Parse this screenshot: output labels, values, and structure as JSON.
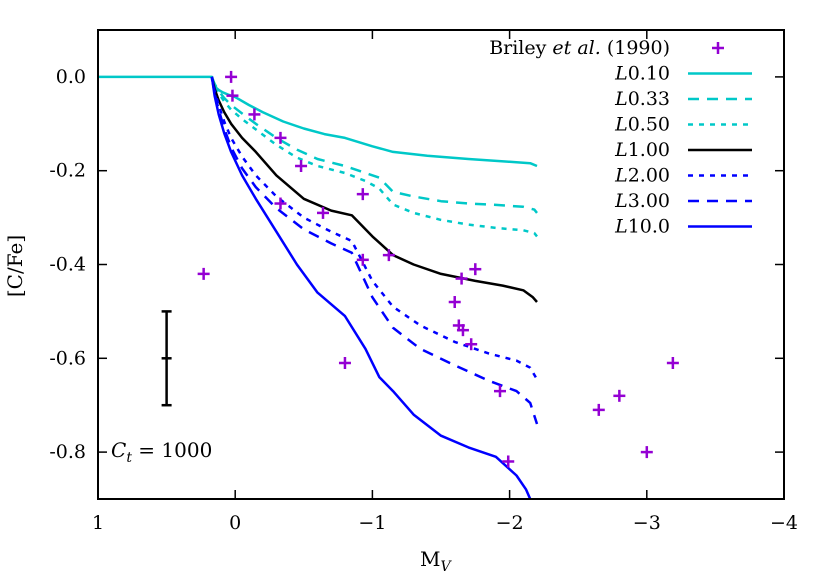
{
  "chart_data": {
    "type": "line",
    "xlabel_main": "M",
    "xlabel_sub": "V",
    "ylabel": "[C/Fe]",
    "xlim": [
      1,
      -4
    ],
    "ylim": [
      -0.9,
      0.1
    ],
    "x_ticks": [
      1,
      0,
      -1,
      -2,
      -3,
      -4
    ],
    "x_tick_labels": [
      "1",
      "0",
      "−1",
      "−2",
      "−3",
      "−4"
    ],
    "y_ticks": [
      0.0,
      -0.2,
      -0.4,
      -0.6,
      -0.8
    ],
    "y_tick_labels": [
      "0.0",
      "-0.2",
      "-0.4",
      "-0.6",
      "-0.8"
    ],
    "grid": false,
    "legend_position": "top-right",
    "annotation": {
      "lhs": "C",
      "sub": "t",
      "rhs": " = 1000"
    },
    "error_bar": {
      "x": 0.5,
      "y": -0.6,
      "low": -0.7,
      "high": -0.5
    },
    "observations": {
      "name_prefix": "Briley ",
      "name_italic": "et al.",
      "name_suffix": " (1990)",
      "color": "#9400d3",
      "points": [
        [
          0.03,
          0.0
        ],
        [
          0.02,
          -0.04
        ],
        [
          -0.14,
          -0.08
        ],
        [
          -0.33,
          -0.13
        ],
        [
          -0.48,
          -0.19
        ],
        [
          -0.33,
          -0.27
        ],
        [
          0.23,
          -0.42
        ],
        [
          -0.64,
          -0.29
        ],
        [
          -0.93,
          -0.25
        ],
        [
          -0.93,
          -0.39
        ],
        [
          -1.12,
          -0.38
        ],
        [
          -0.8,
          -0.61
        ],
        [
          -1.6,
          -0.48
        ],
        [
          -1.65,
          -0.43
        ],
        [
          -1.75,
          -0.41
        ],
        [
          -1.63,
          -0.53
        ],
        [
          -1.66,
          -0.54
        ],
        [
          -1.72,
          -0.57
        ],
        [
          -1.93,
          -0.67
        ],
        [
          -1.99,
          -0.82
        ],
        [
          -2.65,
          -0.71
        ],
        [
          -2.8,
          -0.68
        ],
        [
          -3.0,
          -0.8
        ],
        [
          -3.19,
          -0.61
        ]
      ]
    },
    "series": [
      {
        "name_italic": "L",
        "name_rest": "0.10",
        "color": "#00c8c8",
        "dash": "solid",
        "x": [
          1,
          0.17,
          0.17,
          0.16,
          0.15,
          0.14,
          0.12,
          0.09,
          0.05,
          0.0,
          -0.1,
          -0.2,
          -0.35,
          -0.5,
          -0.65,
          -0.8,
          -1.0,
          -1.15,
          -1.4,
          -1.7,
          -2.0,
          -2.15,
          -2.2
        ],
        "y": [
          0.0,
          0.0,
          -0.005,
          -0.012,
          -0.018,
          -0.023,
          -0.028,
          -0.033,
          -0.038,
          -0.043,
          -0.06,
          -0.075,
          -0.095,
          -0.11,
          -0.122,
          -0.13,
          -0.148,
          -0.16,
          -0.168,
          -0.175,
          -0.181,
          -0.184,
          -0.19
        ]
      },
      {
        "name_italic": "L",
        "name_rest": "0.33",
        "color": "#00c8c8",
        "dash": "long",
        "x": [
          0.17,
          0.15,
          0.12,
          0.08,
          0.03,
          -0.05,
          -0.15,
          -0.3,
          -0.45,
          -0.6,
          -0.8,
          -0.95,
          -1.05,
          -1.15,
          -1.3,
          -1.5,
          -1.7,
          -1.9,
          -2.1,
          -2.18,
          -2.2
        ],
        "y": [
          0.0,
          -0.015,
          -0.03,
          -0.045,
          -0.06,
          -0.078,
          -0.1,
          -0.13,
          -0.155,
          -0.175,
          -0.19,
          -0.205,
          -0.215,
          -0.245,
          -0.255,
          -0.265,
          -0.27,
          -0.273,
          -0.277,
          -0.283,
          -0.29
        ]
      },
      {
        "name_italic": "L",
        "name_rest": "0.50",
        "color": "#00c8c8",
        "dash": "short",
        "x": [
          0.17,
          0.15,
          0.12,
          0.08,
          0.03,
          -0.05,
          -0.15,
          -0.3,
          -0.45,
          -0.6,
          -0.8,
          -0.95,
          -1.05,
          -1.15,
          -1.3,
          -1.5,
          -1.7,
          -1.9,
          -2.1,
          -2.18,
          -2.2
        ],
        "y": [
          0.0,
          -0.018,
          -0.035,
          -0.052,
          -0.07,
          -0.09,
          -0.112,
          -0.145,
          -0.172,
          -0.19,
          -0.205,
          -0.222,
          -0.238,
          -0.272,
          -0.29,
          -0.305,
          -0.315,
          -0.322,
          -0.327,
          -0.333,
          -0.34
        ]
      },
      {
        "name_italic": "L",
        "name_rest": "1.00",
        "color": "#000000",
        "dash": "solid",
        "x": [
          0.17,
          0.15,
          0.12,
          0.08,
          0.03,
          -0.05,
          -0.15,
          -0.3,
          -0.5,
          -0.7,
          -0.85,
          -1.0,
          -1.15,
          -1.3,
          -1.5,
          -1.75,
          -1.95,
          -2.1,
          -2.17,
          -2.2
        ],
        "y": [
          0.0,
          -0.025,
          -0.05,
          -0.075,
          -0.1,
          -0.13,
          -0.16,
          -0.21,
          -0.26,
          -0.285,
          -0.295,
          -0.34,
          -0.38,
          -0.4,
          -0.42,
          -0.435,
          -0.445,
          -0.455,
          -0.47,
          -0.48
        ]
      },
      {
        "name_italic": "L",
        "name_rest": "2.00",
        "color": "#0000ff",
        "dash": "short",
        "x": [
          0.17,
          0.15,
          0.12,
          0.08,
          0.03,
          -0.05,
          -0.15,
          -0.3,
          -0.5,
          -0.7,
          -0.85,
          -1.0,
          -1.15,
          -1.35,
          -1.6,
          -1.85,
          -2.05,
          -2.15,
          -2.2
        ],
        "y": [
          0.0,
          -0.03,
          -0.06,
          -0.095,
          -0.13,
          -0.17,
          -0.21,
          -0.255,
          -0.3,
          -0.33,
          -0.35,
          -0.435,
          -0.49,
          -0.53,
          -0.565,
          -0.59,
          -0.605,
          -0.62,
          -0.645
        ]
      },
      {
        "name_italic": "L",
        "name_rest": "3.00",
        "color": "#0000ff",
        "dash": "long",
        "x": [
          0.17,
          0.15,
          0.12,
          0.08,
          0.03,
          -0.05,
          -0.15,
          -0.3,
          -0.5,
          -0.7,
          -0.85,
          -1.0,
          -1.15,
          -1.35,
          -1.6,
          -1.85,
          -2.05,
          -2.15,
          -2.2
        ],
        "y": [
          0.0,
          -0.035,
          -0.07,
          -0.11,
          -0.15,
          -0.195,
          -0.235,
          -0.28,
          -0.325,
          -0.355,
          -0.375,
          -0.47,
          -0.535,
          -0.58,
          -0.615,
          -0.648,
          -0.67,
          -0.695,
          -0.74
        ]
      },
      {
        "name_italic": "L",
        "name_rest": "10.0",
        "color": "#0000ff",
        "dash": "solid",
        "x": [
          0.17,
          0.15,
          0.12,
          0.08,
          0.03,
          -0.05,
          -0.15,
          -0.3,
          -0.45,
          -0.6,
          -0.8,
          -0.95,
          -1.05,
          -1.15,
          -1.3,
          -1.5,
          -1.7,
          -1.9,
          -2.05,
          -2.12,
          -2.15
        ],
        "y": [
          0.0,
          -0.04,
          -0.08,
          -0.12,
          -0.16,
          -0.21,
          -0.26,
          -0.33,
          -0.4,
          -0.46,
          -0.51,
          -0.58,
          -0.64,
          -0.67,
          -0.72,
          -0.765,
          -0.79,
          -0.81,
          -0.85,
          -0.88,
          -0.9
        ]
      }
    ]
  }
}
